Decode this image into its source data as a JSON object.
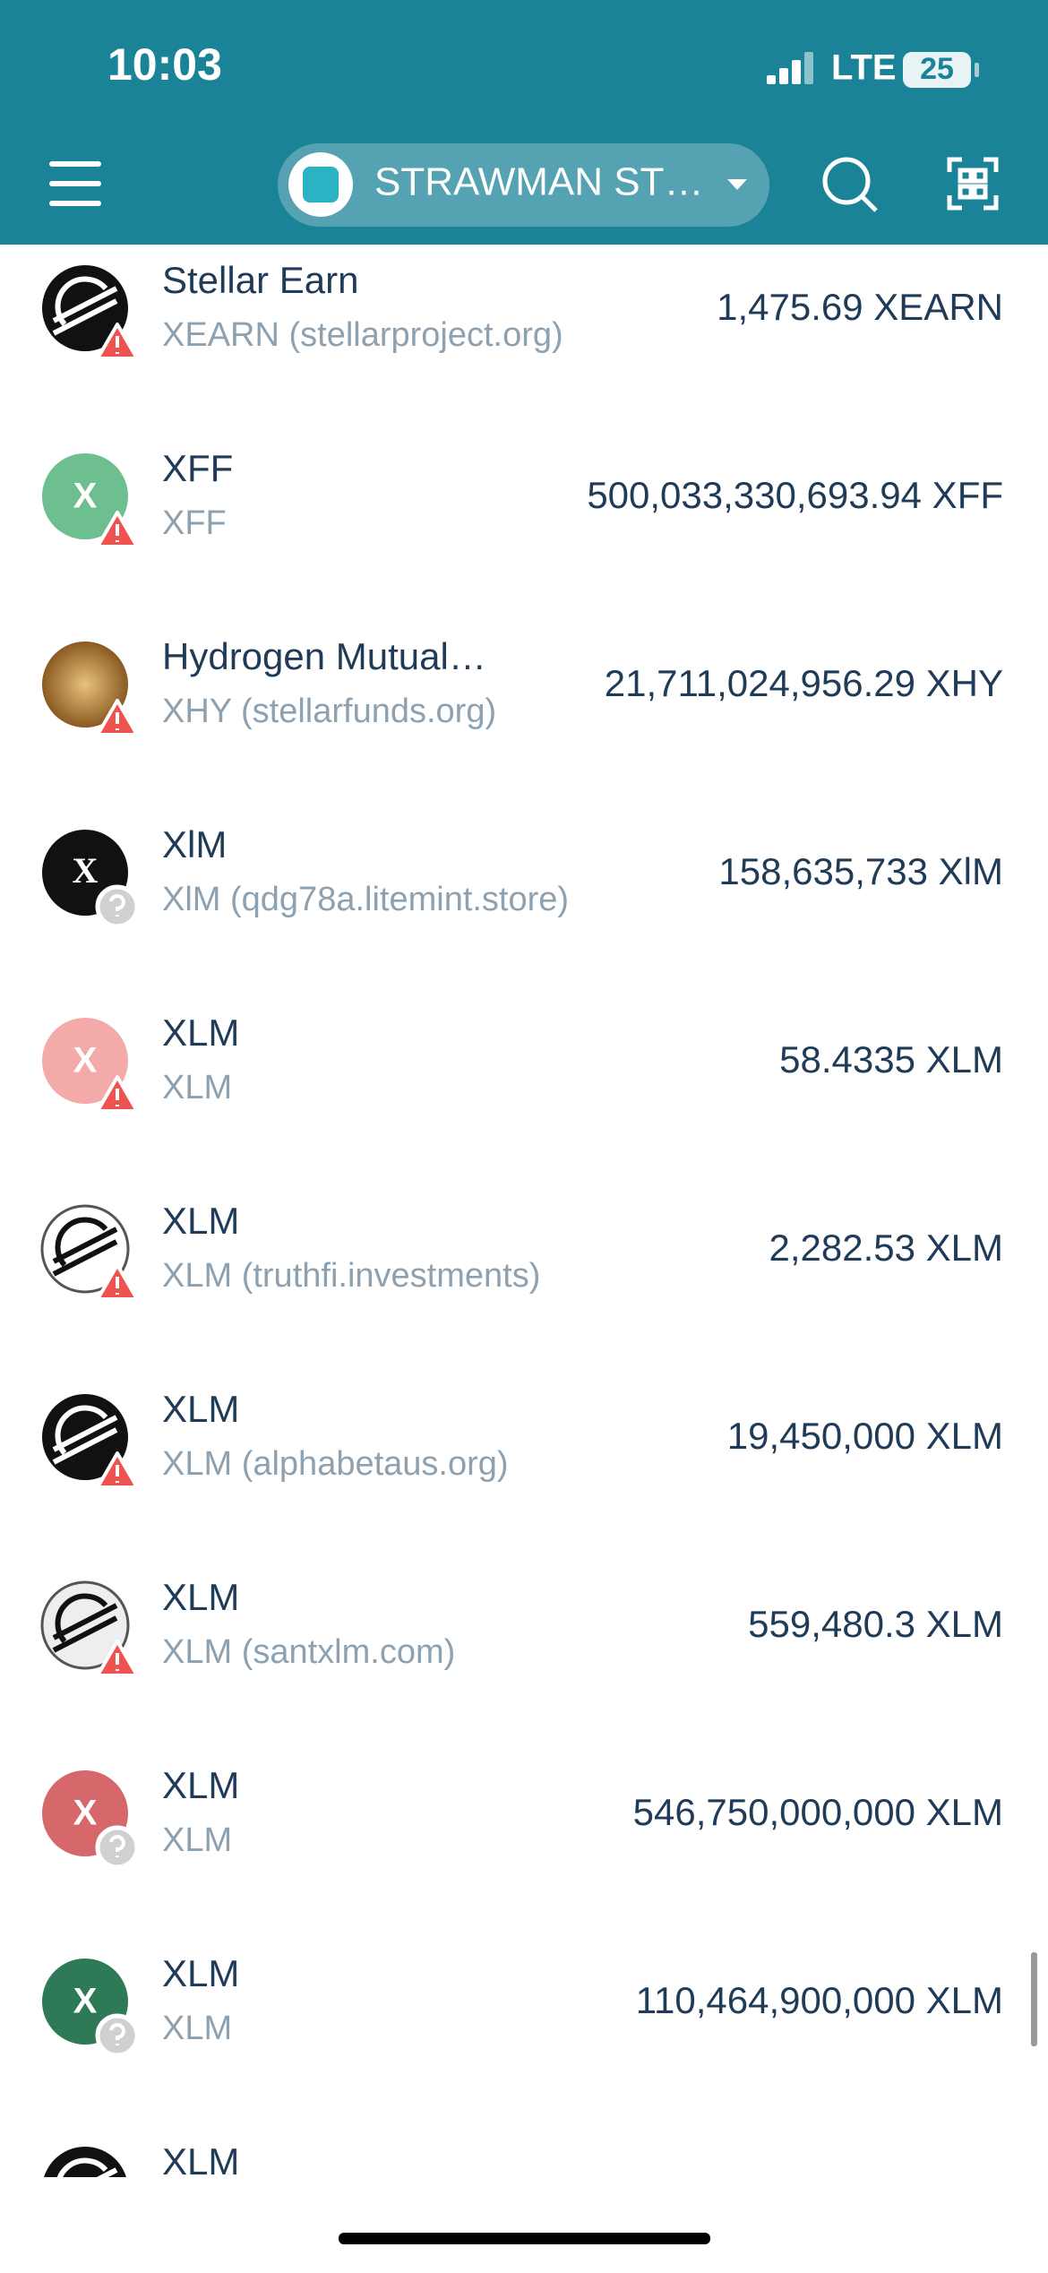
{
  "status_bar": {
    "time": "10:03",
    "network": "LTE",
    "battery": "25"
  },
  "header": {
    "account": "STRAWMAN ST…"
  },
  "rows": [
    {
      "title": "Stellar Earn",
      "subtitle": "XEARN (stellarproject.org)",
      "amount": "1,475.69 XEARN"
    },
    {
      "title": "XFF",
      "subtitle": "XFF",
      "amount": "500,033,330,693.94 XFF",
      "icon_text": "X"
    },
    {
      "title": "Hydrogen Mutual…",
      "subtitle": "XHY (stellarfunds.org)",
      "amount": "21,711,024,956.29 XHY"
    },
    {
      "title": "XlM",
      "subtitle": "XlM (qdg78a.litemint.store)",
      "amount": "158,635,733 XlM",
      "icon_text": "X"
    },
    {
      "title": "XLM",
      "subtitle": "XLM",
      "amount": "58.4335 XLM",
      "icon_text": "X"
    },
    {
      "title": "XLM",
      "subtitle": "XLM (truthfi.investments)",
      "amount": "2,282.53 XLM"
    },
    {
      "title": "XLM",
      "subtitle": "XLM (alphabetaus.org)",
      "amount": "19,450,000 XLM"
    },
    {
      "title": "XLM",
      "subtitle": "XLM (santxlm.com)",
      "amount": "559,480.3 XLM"
    },
    {
      "title": "XLM",
      "subtitle": "XLM",
      "amount": "546,750,000,000 XLM",
      "icon_text": "X"
    },
    {
      "title": "XLM",
      "subtitle": "XLM",
      "amount": "110,464,900,000 XLM",
      "icon_text": "X"
    },
    {
      "title": "XLM"
    }
  ]
}
